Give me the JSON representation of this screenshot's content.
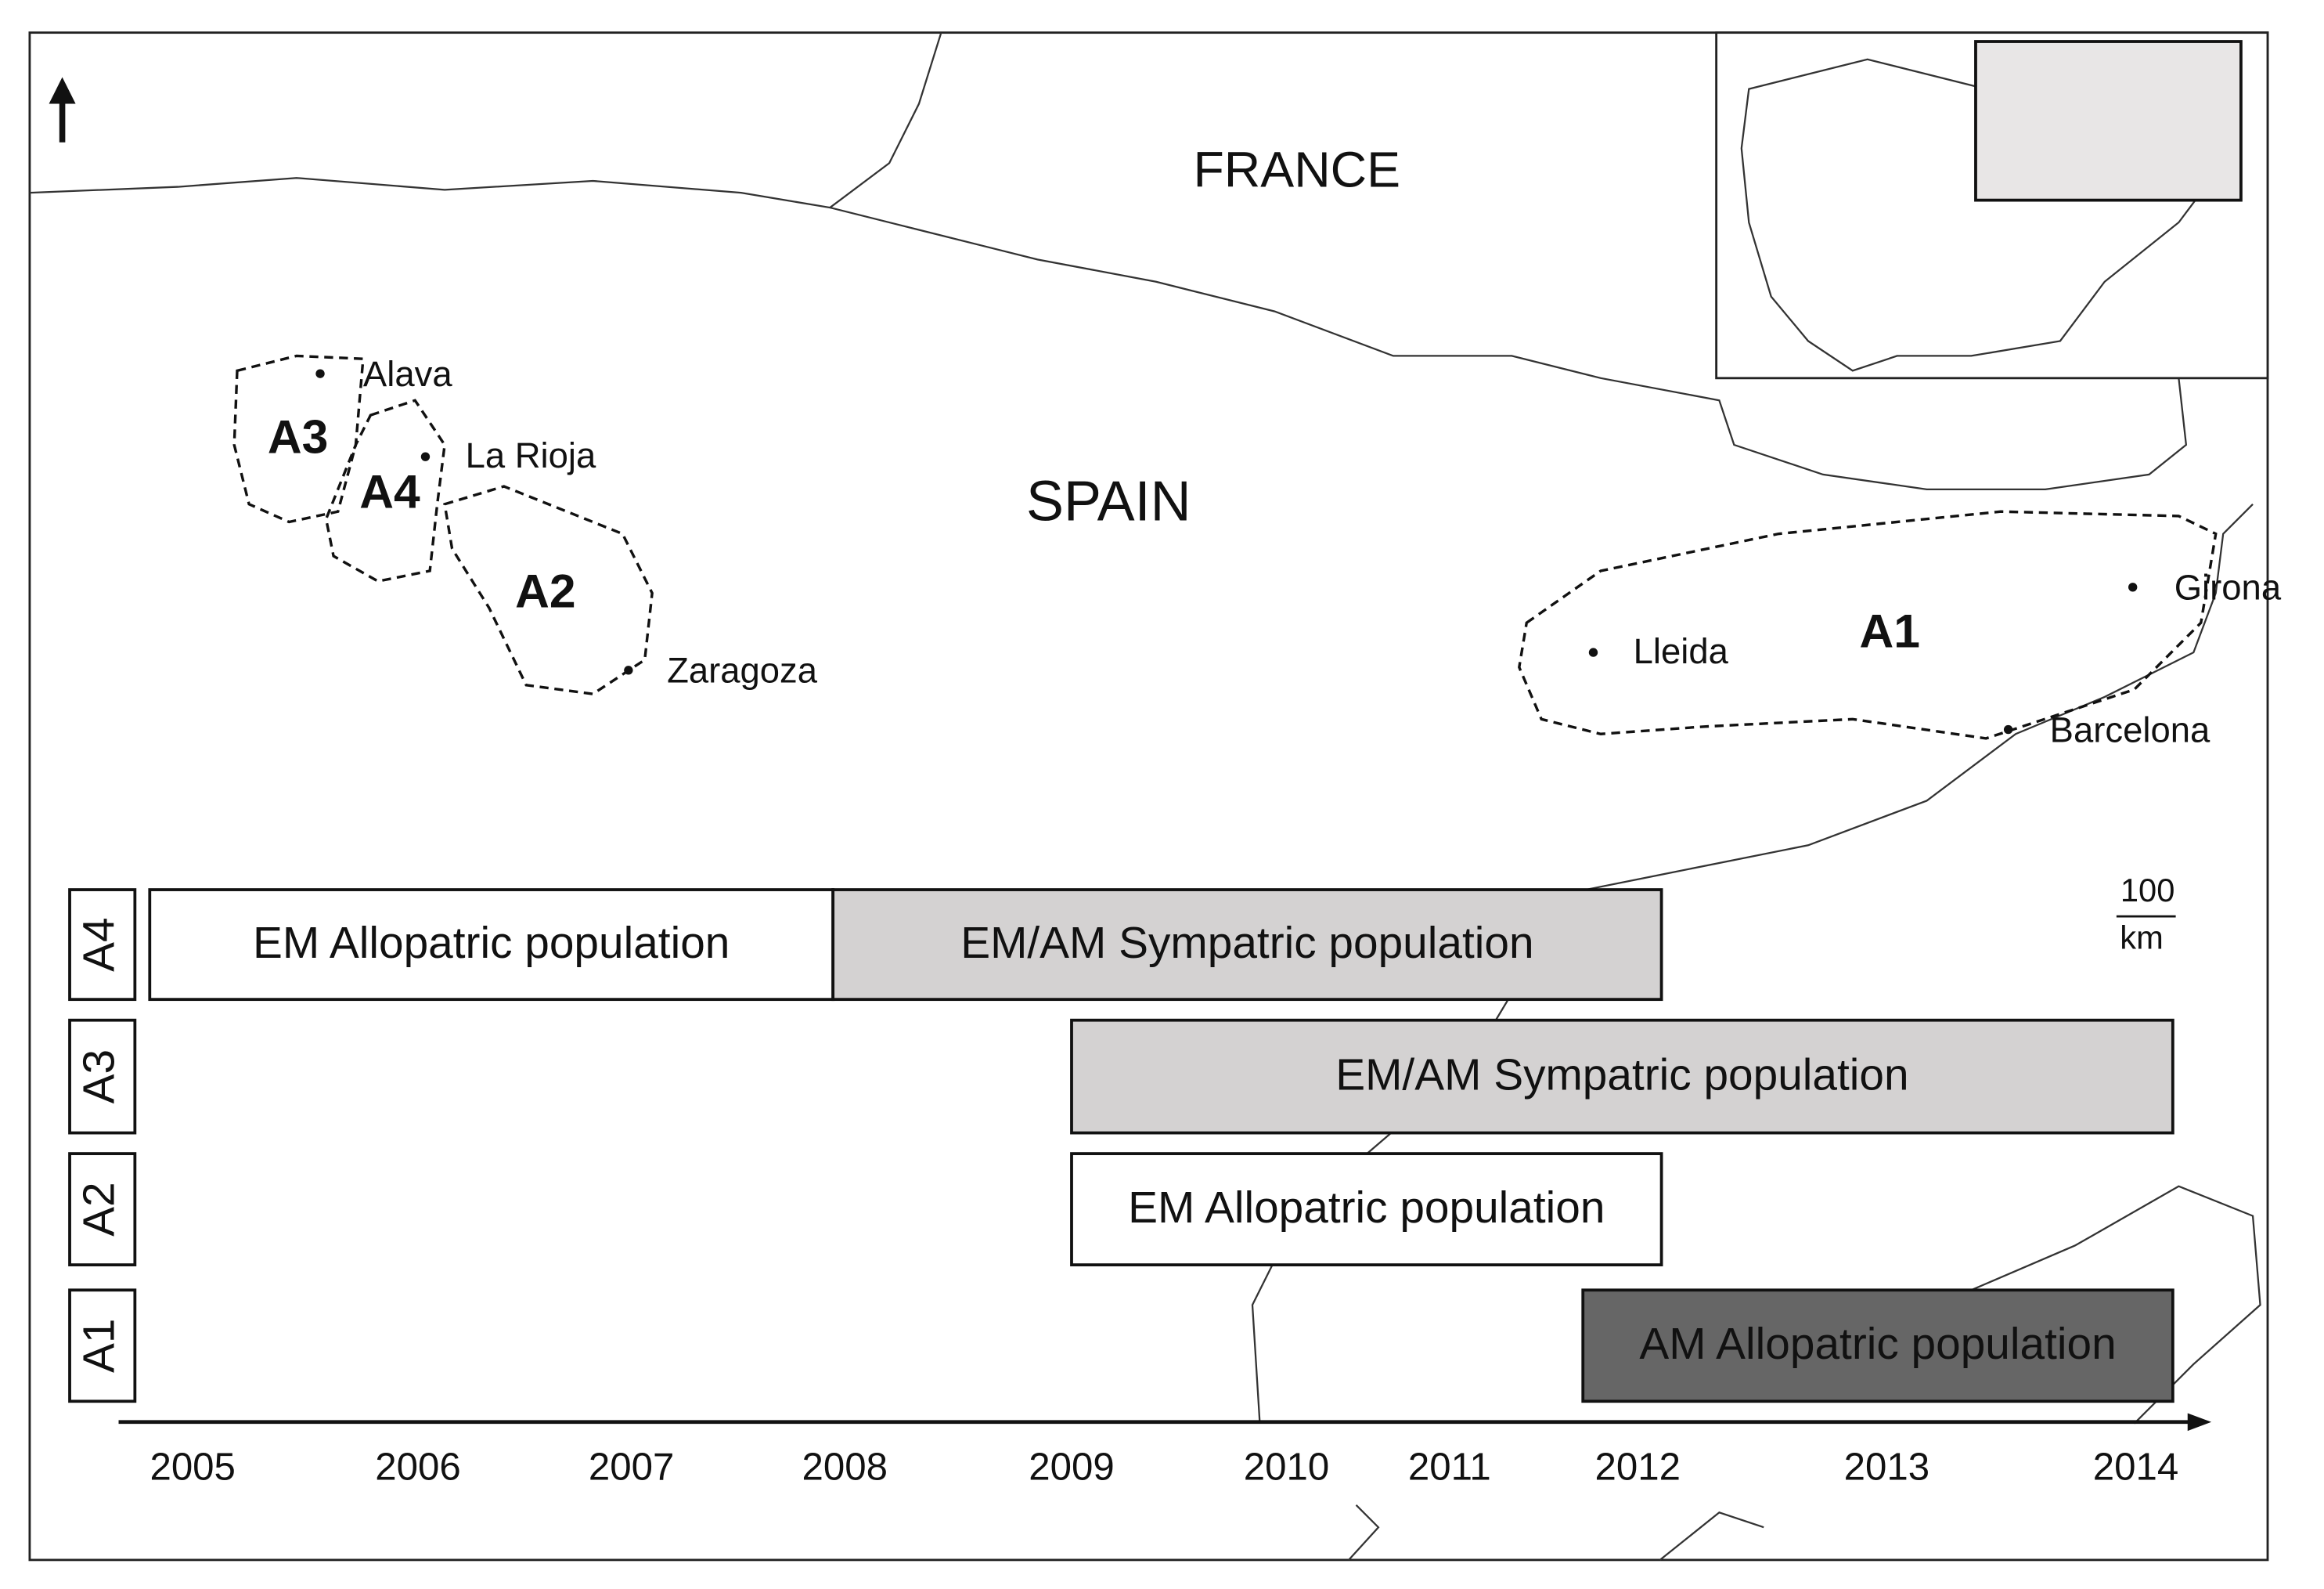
{
  "map": {
    "countries": [
      "FRANCE",
      "SPAIN"
    ],
    "areas": [
      "A3",
      "A4",
      "A2",
      "A1"
    ],
    "cities": [
      "Alava",
      "La Rioja",
      "Zaragoza",
      "Lleida",
      "Girona",
      "Barcelona"
    ],
    "scale": {
      "distance": "100",
      "unit": "km"
    }
  },
  "timeline": {
    "rows": [
      {
        "label": "A4",
        "bars": [
          "EM Allopatric population",
          "EM/AM Sympatric population"
        ]
      },
      {
        "label": "A3",
        "bars": [
          "EM/AM Sympatric population"
        ]
      },
      {
        "label": "A2",
        "bars": [
          "EM Allopatric population"
        ]
      },
      {
        "label": "A1",
        "bars": [
          "AM Allopatric population"
        ]
      }
    ],
    "years": [
      "2005",
      "2006",
      "2007",
      "2008",
      "2009",
      "2010",
      "2011",
      "2012",
      "2013",
      "2014"
    ]
  }
}
